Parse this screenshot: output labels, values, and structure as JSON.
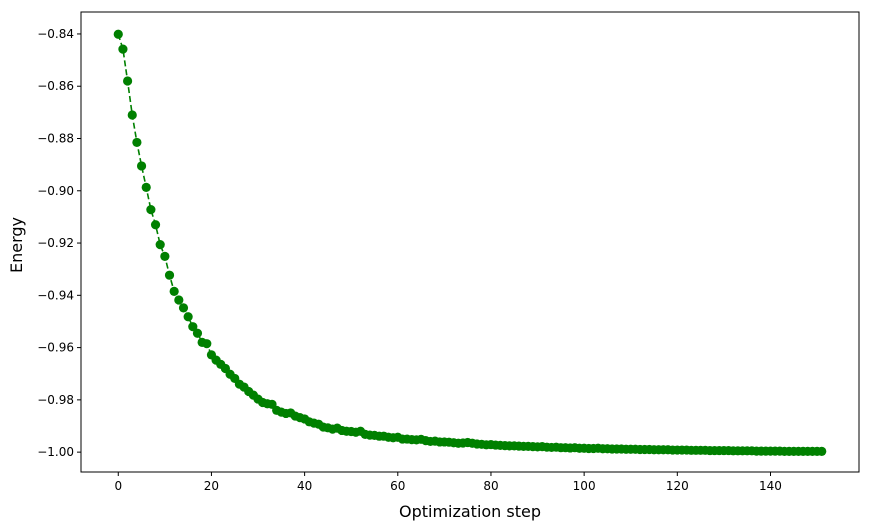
{
  "chart_data": {
    "type": "line",
    "title": "",
    "xlabel": "Optimization step",
    "ylabel": "Energy",
    "xlim": [
      -8,
      159
    ],
    "ylim": [
      -1.0076,
      -0.8316
    ],
    "xticks": [
      0,
      20,
      40,
      60,
      80,
      100,
      120,
      140
    ],
    "xtick_labels": [
      "0",
      "20",
      "40",
      "60",
      "80",
      "100",
      "120",
      "140"
    ],
    "yticks": [
      -0.84,
      -0.86,
      -0.88,
      -0.9,
      -0.92,
      -0.94,
      -0.96,
      -0.98,
      -1.0
    ],
    "ytick_labels": [
      "−0.84",
      "−0.86",
      "−0.88",
      "−0.90",
      "−0.92",
      "−0.94",
      "−0.96",
      "−0.98",
      "−1.00"
    ],
    "grid": false,
    "series": [
      {
        "color": "#008000",
        "line_style": "dashed",
        "marker": "circle",
        "x_start": 0,
        "x_step": 1,
        "values": [
          -0.8401,
          -0.8458,
          -0.858,
          -0.871,
          -0.8815,
          -0.8905,
          -0.8987,
          -0.9072,
          -0.913,
          -0.9206,
          -0.9251,
          -0.9323,
          -0.9385,
          -0.9418,
          -0.9448,
          -0.9482,
          -0.952,
          -0.9545,
          -0.958,
          -0.9585,
          -0.9628,
          -0.9648,
          -0.9664,
          -0.968,
          -0.9702,
          -0.9718,
          -0.974,
          -0.9751,
          -0.9768,
          -0.9782,
          -0.9797,
          -0.981,
          -0.9815,
          -0.9817,
          -0.984,
          -0.9847,
          -0.9852,
          -0.985,
          -0.9862,
          -0.9868,
          -0.9873,
          -0.9884,
          -0.9889,
          -0.9893,
          -0.9904,
          -0.9907,
          -0.9912,
          -0.9908,
          -0.9917,
          -0.992,
          -0.9921,
          -0.9924,
          -0.992,
          -0.9932,
          -0.9935,
          -0.9936,
          -0.9939,
          -0.9939,
          -0.9943,
          -0.9945,
          -0.9943,
          -0.995,
          -0.995,
          -0.9952,
          -0.9953,
          -0.9951,
          -0.9956,
          -0.9959,
          -0.9958,
          -0.9961,
          -0.9961,
          -0.9962,
          -0.9964,
          -0.9966,
          -0.9965,
          -0.9963,
          -0.9966,
          -0.9969,
          -0.997,
          -0.9972,
          -0.9971,
          -0.9973,
          -0.9974,
          -0.9975,
          -0.9976,
          -0.9976,
          -0.9977,
          -0.9978,
          -0.9978,
          -0.9979,
          -0.998,
          -0.9979,
          -0.9981,
          -0.9982,
          -0.9981,
          -0.9983,
          -0.9983,
          -0.9984,
          -0.9983,
          -0.9985,
          -0.9985,
          -0.9986,
          -0.9986,
          -0.9985,
          -0.9987,
          -0.9987,
          -0.9988,
          -0.9988,
          -0.9988,
          -0.9989,
          -0.9989,
          -0.9989,
          -0.999,
          -0.999,
          -0.999,
          -0.9991,
          -0.9991,
          -0.9991,
          -0.9991,
          -0.9992,
          -0.9992,
          -0.9992,
          -0.9992,
          -0.9993,
          -0.9993,
          -0.9993,
          -0.9993,
          -0.9994,
          -0.9994,
          -0.9994,
          -0.9994,
          -0.9994,
          -0.9995,
          -0.9995,
          -0.9995,
          -0.9995,
          -0.9995,
          -0.9996,
          -0.9996,
          -0.9996,
          -0.9996,
          -0.9996,
          -0.9996,
          -0.9997,
          -0.9997,
          -0.9997,
          -0.9997,
          -0.9997,
          -0.9997,
          -0.9997,
          -0.9997,
          -0.9997
        ]
      }
    ]
  }
}
